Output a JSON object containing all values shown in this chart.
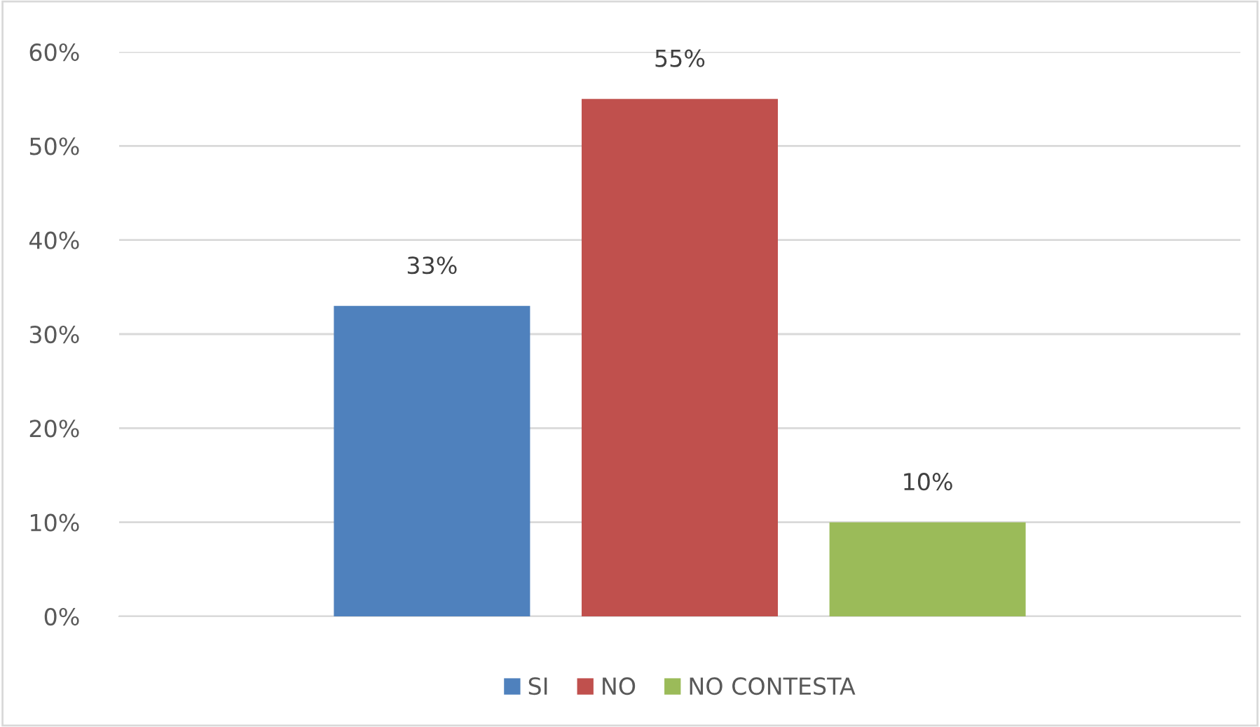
{
  "chart_data": {
    "type": "bar",
    "categories": [
      null
    ],
    "series": [
      {
        "name": "SI",
        "color": "#4f81bd",
        "values": [
          33
        ],
        "value_labels": [
          "33%"
        ]
      },
      {
        "name": "NO",
        "color": "#c0504d",
        "values": [
          55
        ],
        "value_labels": [
          "55%"
        ]
      },
      {
        "name": "NO CONTESTA",
        "color": "#9bbb59",
        "values": [
          10
        ],
        "value_labels": [
          "10%"
        ]
      }
    ],
    "ylim": [
      0,
      60
    ],
    "yticks": [
      {
        "value": 0,
        "label": "0%"
      },
      {
        "value": 10,
        "label": "10%"
      },
      {
        "value": 20,
        "label": "20%"
      },
      {
        "value": 30,
        "label": "30%"
      },
      {
        "value": 40,
        "label": "40%"
      },
      {
        "value": 50,
        "label": "50%"
      },
      {
        "value": 60,
        "label": "60%"
      }
    ],
    "grid": "y",
    "legend": "bottom"
  }
}
